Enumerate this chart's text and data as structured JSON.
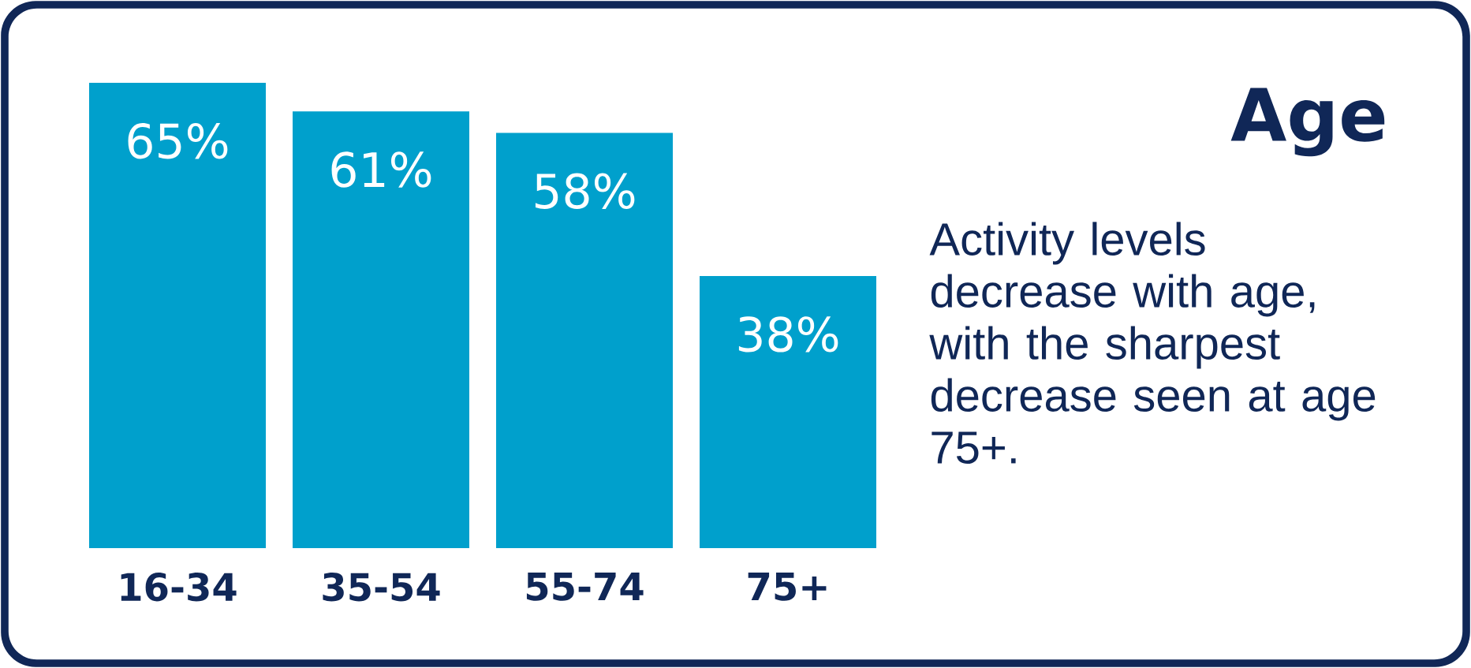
{
  "chart_data": {
    "type": "bar",
    "title": "Age",
    "annotations": [
      "Activity levels decrease with age, with the sharpest decrease seen at age 75+."
    ],
    "categories": [
      "16-34",
      "35-54",
      "55-74",
      "75+"
    ],
    "values": [
      65,
      61,
      58,
      38
    ],
    "value_labels": [
      "65%",
      "61%",
      "58%",
      "38%"
    ],
    "color": "#00a0cc"
  }
}
